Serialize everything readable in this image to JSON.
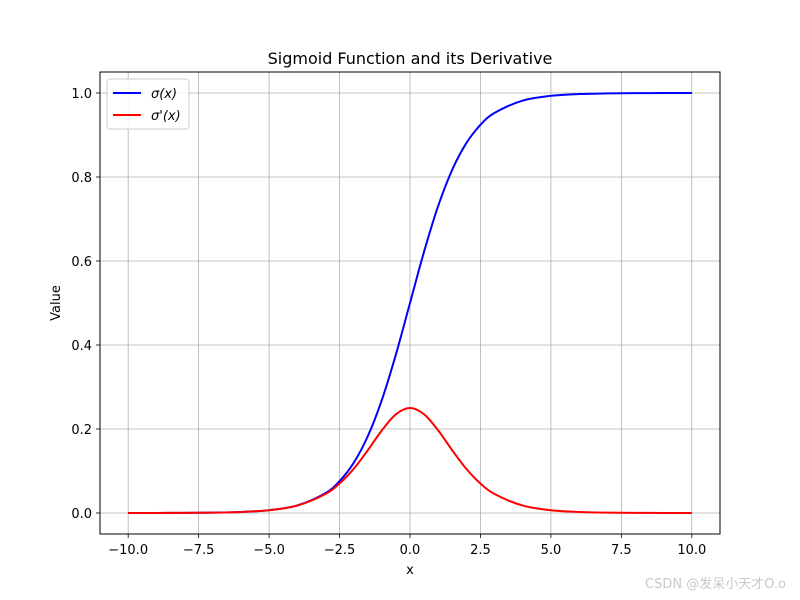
{
  "chart_data": {
    "type": "line",
    "title": "Sigmoid Function and its Derivative",
    "xlabel": "x",
    "ylabel": "Value",
    "xlim": [
      -11.0,
      11.0
    ],
    "ylim": [
      -0.05,
      1.05
    ],
    "xticks": [
      -10.0,
      -7.5,
      -5.0,
      -2.5,
      0.0,
      2.5,
      5.0,
      7.5,
      10.0
    ],
    "xtick_labels": [
      "−10.0",
      "−7.5",
      "−5.0",
      "−2.5",
      "0.0",
      "2.5",
      "5.0",
      "7.5",
      "10.0"
    ],
    "yticks": [
      0.0,
      0.2,
      0.4,
      0.6,
      0.8,
      1.0
    ],
    "ytick_labels": [
      "0.0",
      "0.2",
      "0.4",
      "0.6",
      "0.8",
      "1.0"
    ],
    "grid": true,
    "legend_position": "top-left",
    "x": [
      -10,
      -9,
      -8,
      -7,
      -6,
      -5,
      -4,
      -3,
      -2.5,
      -2,
      -1.5,
      -1,
      -0.5,
      0,
      0.5,
      1,
      1.5,
      2,
      2.5,
      3,
      4,
      5,
      6,
      7,
      8,
      9,
      10
    ],
    "series": [
      {
        "name": "σ(x)",
        "color": "#0000ff",
        "values": [
          5e-05,
          0.00012,
          0.00034,
          0.00091,
          0.00247,
          0.00669,
          0.01799,
          0.04743,
          0.07586,
          0.1192,
          0.18243,
          0.26894,
          0.37754,
          0.5,
          0.62246,
          0.73106,
          0.81757,
          0.8808,
          0.92414,
          0.95257,
          0.98201,
          0.99331,
          0.99753,
          0.99909,
          0.99966,
          0.99988,
          0.99995
        ]
      },
      {
        "name": "σ'(x)",
        "color": "#ff0000",
        "values": [
          5e-05,
          0.00012,
          0.00034,
          0.00091,
          0.00247,
          0.00665,
          0.01766,
          0.04518,
          0.07011,
          0.10499,
          0.14915,
          0.19661,
          0.235,
          0.25,
          0.235,
          0.19661,
          0.14915,
          0.10499,
          0.07011,
          0.04518,
          0.01766,
          0.00665,
          0.00247,
          0.00091,
          0.00034,
          0.00012,
          5e-05
        ]
      }
    ]
  },
  "watermark": "CSDN @发呆小天才O.o"
}
